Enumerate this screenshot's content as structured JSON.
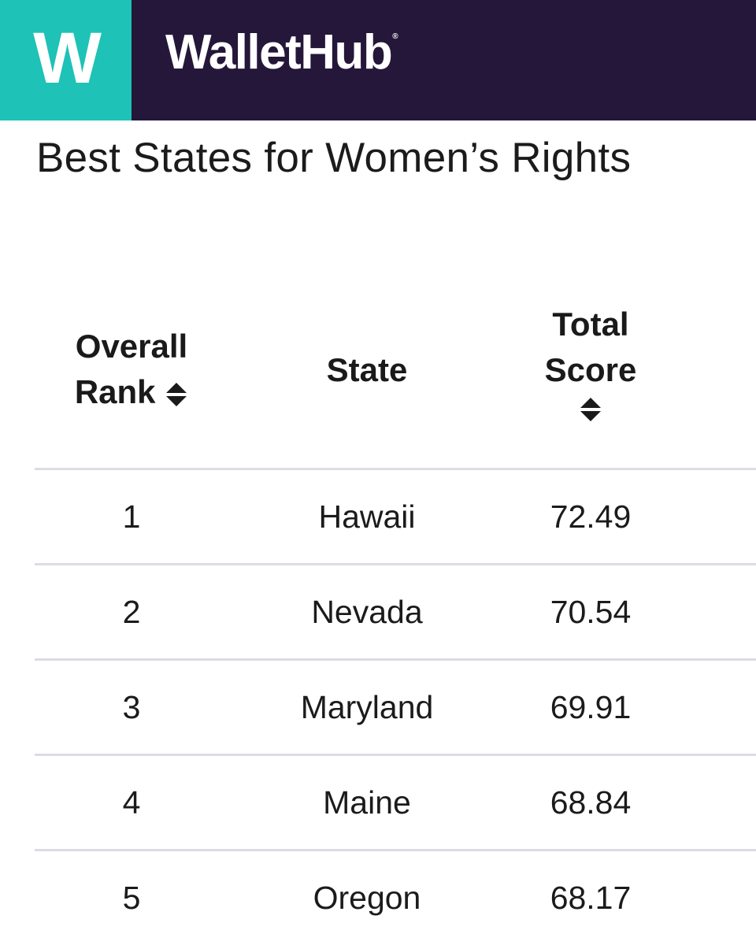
{
  "header": {
    "logo_letter": "W",
    "brand_name": "WalletHub",
    "brand_mark": "®",
    "colors": {
      "background": "#251739",
      "logo_background": "#1ec2b6",
      "text": "#ffffff"
    }
  },
  "page_title": "Best States for Women’s Rights",
  "table": {
    "columns": [
      {
        "label_line1": "Overall",
        "label_line2": "Rank",
        "sortable": true,
        "icon": "sort-icon"
      },
      {
        "label": "State",
        "sortable": false
      },
      {
        "label_line1": "Total",
        "label_line2": "Score",
        "sortable": true,
        "icon": "sort-icon"
      }
    ],
    "rows": [
      {
        "rank": "1",
        "state": "Hawaii",
        "score": "72.49"
      },
      {
        "rank": "2",
        "state": "Nevada",
        "score": "70.54"
      },
      {
        "rank": "3",
        "state": "Maryland",
        "score": "69.91"
      },
      {
        "rank": "4",
        "state": "Maine",
        "score": "68.84"
      },
      {
        "rank": "5",
        "state": "Oregon",
        "score": "68.17"
      }
    ]
  }
}
